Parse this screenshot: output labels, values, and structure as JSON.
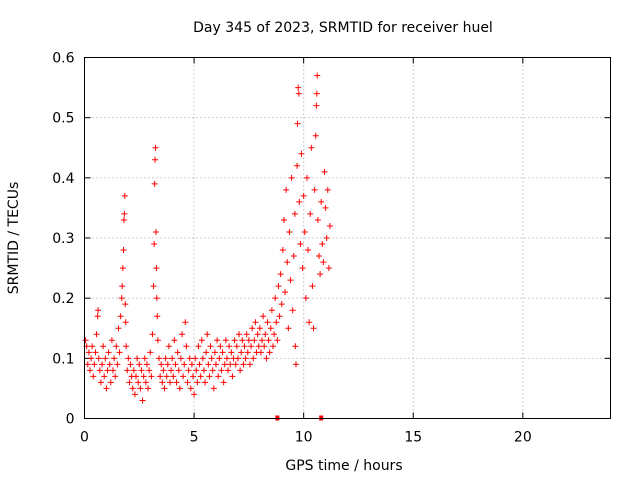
{
  "chart_data": {
    "type": "scatter",
    "title": "Day 345 of 2023, SRMTID for receiver huel",
    "xlabel": "GPS time / hours",
    "ylabel": "SRMTID / TECUs",
    "xlim": [
      0,
      24
    ],
    "ylim": [
      0,
      0.6
    ],
    "x_ticks": [
      0,
      5,
      10,
      15,
      20
    ],
    "x_tick_labels": [
      "0",
      "5",
      "10",
      "15",
      "20"
    ],
    "y_ticks": [
      0,
      0.1,
      0.2,
      0.3,
      0.4,
      0.5,
      0.6
    ],
    "y_tick_labels": [
      "0",
      "0.1",
      "0.2",
      "0.3",
      "0.4",
      "0.5",
      "0.6"
    ],
    "grid": true,
    "marker": "+",
    "color": "#ff0000",
    "gap_markers": [
      8.8,
      10.8
    ],
    "series": [
      {
        "name": "SRMTID",
        "points": [
          [
            0.05,
            0.13
          ],
          [
            0.1,
            0.12
          ],
          [
            0.15,
            0.09
          ],
          [
            0.2,
            0.11
          ],
          [
            0.25,
            0.08
          ],
          [
            0.3,
            0.1
          ],
          [
            0.35,
            0.12
          ],
          [
            0.4,
            0.07
          ],
          [
            0.45,
            0.09
          ],
          [
            0.5,
            0.11
          ],
          [
            0.55,
            0.14
          ],
          [
            0.6,
            0.17
          ],
          [
            0.62,
            0.18
          ],
          [
            0.65,
            0.1
          ],
          [
            0.7,
            0.08
          ],
          [
            0.75,
            0.06
          ],
          [
            0.8,
            0.09
          ],
          [
            0.85,
            0.12
          ],
          [
            0.9,
            0.07
          ],
          [
            0.95,
            0.1
          ],
          [
            1.0,
            0.05
          ],
          [
            1.05,
            0.08
          ],
          [
            1.1,
            0.11
          ],
          [
            1.15,
            0.09
          ],
          [
            1.2,
            0.06
          ],
          [
            1.25,
            0.13
          ],
          [
            1.3,
            0.08
          ],
          [
            1.35,
            0.1
          ],
          [
            1.4,
            0.07
          ],
          [
            1.45,
            0.12
          ],
          [
            1.5,
            0.09
          ],
          [
            1.55,
            0.15
          ],
          [
            1.6,
            0.11
          ],
          [
            1.65,
            0.17
          ],
          [
            1.7,
            0.2
          ],
          [
            1.72,
            0.22
          ],
          [
            1.75,
            0.25
          ],
          [
            1.78,
            0.28
          ],
          [
            1.8,
            0.33
          ],
          [
            1.82,
            0.34
          ],
          [
            1.84,
            0.37
          ],
          [
            1.86,
            0.19
          ],
          [
            1.88,
            0.16
          ],
          [
            1.9,
            0.12
          ],
          [
            1.95,
            0.08
          ],
          [
            2.0,
            0.1
          ],
          [
            2.05,
            0.06
          ],
          [
            2.1,
            0.09
          ],
          [
            2.15,
            0.07
          ],
          [
            2.2,
            0.05
          ],
          [
            2.25,
            0.08
          ],
          [
            2.3,
            0.04
          ],
          [
            2.35,
            0.07
          ],
          [
            2.4,
            0.1
          ],
          [
            2.45,
            0.06
          ],
          [
            2.5,
            0.09
          ],
          [
            2.55,
            0.05
          ],
          [
            2.6,
            0.08
          ],
          [
            2.65,
            0.03
          ],
          [
            2.7,
            0.07
          ],
          [
            2.75,
            0.1
          ],
          [
            2.8,
            0.06
          ],
          [
            2.85,
            0.09
          ],
          [
            2.9,
            0.05
          ],
          [
            2.95,
            0.08
          ],
          [
            3.0,
            0.11
          ],
          [
            3.05,
            0.07
          ],
          [
            3.1,
            0.14
          ],
          [
            3.15,
            0.22
          ],
          [
            3.18,
            0.29
          ],
          [
            3.2,
            0.39
          ],
          [
            3.22,
            0.43
          ],
          [
            3.24,
            0.45
          ],
          [
            3.26,
            0.31
          ],
          [
            3.28,
            0.25
          ],
          [
            3.3,
            0.2
          ],
          [
            3.32,
            0.17
          ],
          [
            3.35,
            0.13
          ],
          [
            3.4,
            0.1
          ],
          [
            3.45,
            0.07
          ],
          [
            3.5,
            0.09
          ],
          [
            3.55,
            0.06
          ],
          [
            3.6,
            0.08
          ],
          [
            3.65,
            0.05
          ],
          [
            3.7,
            0.1
          ],
          [
            3.75,
            0.07
          ],
          [
            3.8,
            0.09
          ],
          [
            3.85,
            0.12
          ],
          [
            3.9,
            0.06
          ],
          [
            3.95,
            0.08
          ],
          [
            4.0,
            0.1
          ],
          [
            4.05,
            0.07
          ],
          [
            4.1,
            0.13
          ],
          [
            4.15,
            0.09
          ],
          [
            4.2,
            0.06
          ],
          [
            4.25,
            0.11
          ],
          [
            4.3,
            0.08
          ],
          [
            4.35,
            0.05
          ],
          [
            4.4,
            0.1
          ],
          [
            4.45,
            0.14
          ],
          [
            4.5,
            0.07
          ],
          [
            4.55,
            0.09
          ],
          [
            4.6,
            0.16
          ],
          [
            4.65,
            0.12
          ],
          [
            4.7,
            0.06
          ],
          [
            4.75,
            0.08
          ],
          [
            4.8,
            0.1
          ],
          [
            4.85,
            0.05
          ],
          [
            4.9,
            0.09
          ],
          [
            4.95,
            0.07
          ],
          [
            5.0,
            0.04
          ],
          [
            5.05,
            0.1
          ],
          [
            5.1,
            0.08
          ],
          [
            5.15,
            0.06
          ],
          [
            5.2,
            0.12
          ],
          [
            5.25,
            0.09
          ],
          [
            5.3,
            0.07
          ],
          [
            5.35,
            0.13
          ],
          [
            5.4,
            0.1
          ],
          [
            5.45,
            0.08
          ],
          [
            5.5,
            0.06
          ],
          [
            5.55,
            0.11
          ],
          [
            5.6,
            0.14
          ],
          [
            5.65,
            0.09
          ],
          [
            5.7,
            0.07
          ],
          [
            5.75,
            0.12
          ],
          [
            5.8,
            0.1
          ],
          [
            5.85,
            0.08
          ],
          [
            5.9,
            0.05
          ],
          [
            5.95,
            0.11
          ],
          [
            6.0,
            0.09
          ],
          [
            6.05,
            0.13
          ],
          [
            6.1,
            0.07
          ],
          [
            6.15,
            0.1
          ],
          [
            6.2,
            0.12
          ],
          [
            6.25,
            0.08
          ],
          [
            6.3,
            0.11
          ],
          [
            6.35,
            0.06
          ],
          [
            6.4,
            0.09
          ],
          [
            6.45,
            0.13
          ],
          [
            6.5,
            0.1
          ],
          [
            6.55,
            0.08
          ],
          [
            6.6,
            0.12
          ],
          [
            6.65,
            0.09
          ],
          [
            6.7,
            0.11
          ],
          [
            6.75,
            0.07
          ],
          [
            6.8,
            0.1
          ],
          [
            6.85,
            0.13
          ],
          [
            6.9,
            0.09
          ],
          [
            6.95,
            0.12
          ],
          [
            7.0,
            0.1
          ],
          [
            7.05,
            0.14
          ],
          [
            7.1,
            0.08
          ],
          [
            7.15,
            0.11
          ],
          [
            7.2,
            0.13
          ],
          [
            7.25,
            0.09
          ],
          [
            7.3,
            0.12
          ],
          [
            7.35,
            0.1
          ],
          [
            7.4,
            0.14
          ],
          [
            7.45,
            0.11
          ],
          [
            7.5,
            0.13
          ],
          [
            7.55,
            0.09
          ],
          [
            7.6,
            0.12
          ],
          [
            7.65,
            0.15
          ],
          [
            7.7,
            0.1
          ],
          [
            7.75,
            0.13
          ],
          [
            7.8,
            0.16
          ],
          [
            7.85,
            0.11
          ],
          [
            7.9,
            0.14
          ],
          [
            7.95,
            0.12
          ],
          [
            8.0,
            0.15
          ],
          [
            8.05,
            0.11
          ],
          [
            8.1,
            0.13
          ],
          [
            8.15,
            0.17
          ],
          [
            8.2,
            0.12
          ],
          [
            8.25,
            0.14
          ],
          [
            8.3,
            0.1
          ],
          [
            8.35,
            0.16
          ],
          [
            8.4,
            0.13
          ],
          [
            8.45,
            0.11
          ],
          [
            8.5,
            0.15
          ],
          [
            8.55,
            0.18
          ],
          [
            8.6,
            0.12
          ],
          [
            8.65,
            0.14
          ],
          [
            8.7,
            0.2
          ],
          [
            8.75,
            0.16
          ],
          [
            8.8,
            0.13
          ],
          [
            8.85,
            0.22
          ],
          [
            8.9,
            0.17
          ],
          [
            8.95,
            0.24
          ],
          [
            9.0,
            0.19
          ],
          [
            9.05,
            0.28
          ],
          [
            9.1,
            0.33
          ],
          [
            9.15,
            0.21
          ],
          [
            9.2,
            0.38
          ],
          [
            9.25,
            0.26
          ],
          [
            9.3,
            0.15
          ],
          [
            9.35,
            0.31
          ],
          [
            9.4,
            0.23
          ],
          [
            9.45,
            0.4
          ],
          [
            9.5,
            0.18
          ],
          [
            9.55,
            0.27
          ],
          [
            9.6,
            0.34
          ],
          [
            9.62,
            0.12
          ],
          [
            9.65,
            0.09
          ],
          [
            9.7,
            0.42
          ],
          [
            9.72,
            0.49
          ],
          [
            9.75,
            0.55
          ],
          [
            9.78,
            0.54
          ],
          [
            9.8,
            0.36
          ],
          [
            9.85,
            0.29
          ],
          [
            9.9,
            0.44
          ],
          [
            9.95,
            0.25
          ],
          [
            10.0,
            0.37
          ],
          [
            10.05,
            0.31
          ],
          [
            10.1,
            0.2
          ],
          [
            10.15,
            0.4
          ],
          [
            10.2,
            0.28
          ],
          [
            10.25,
            0.16
          ],
          [
            10.3,
            0.34
          ],
          [
            10.35,
            0.45
          ],
          [
            10.4,
            0.22
          ],
          [
            10.45,
            0.15
          ],
          [
            10.5,
            0.38
          ],
          [
            10.55,
            0.47
          ],
          [
            10.58,
            0.52
          ],
          [
            10.6,
            0.54
          ],
          [
            10.62,
            0.57
          ],
          [
            10.65,
            0.33
          ],
          [
            10.7,
            0.27
          ],
          [
            10.75,
            0.24
          ],
          [
            10.8,
            0.36
          ],
          [
            10.85,
            0.29
          ],
          [
            10.9,
            0.26
          ],
          [
            10.95,
            0.41
          ],
          [
            11.0,
            0.35
          ],
          [
            11.05,
            0.3
          ],
          [
            11.1,
            0.38
          ],
          [
            11.15,
            0.25
          ],
          [
            11.2,
            0.32
          ]
        ]
      }
    ]
  }
}
